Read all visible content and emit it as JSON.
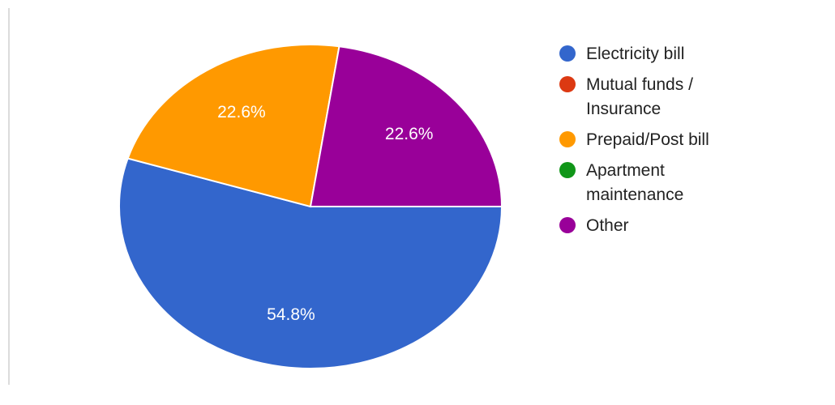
{
  "chart_data": {
    "type": "pie",
    "slices": [
      {
        "label": "Electricity bill",
        "value": 54.8,
        "value_label": "54.8%",
        "color": "#3366CC"
      },
      {
        "label": "Mutual funds / Insurance",
        "value": 0,
        "value_label": "",
        "color": "#DC3912"
      },
      {
        "label": "Prepaid/Post bill",
        "value": 22.6,
        "value_label": "22.6%",
        "color": "#FF9900"
      },
      {
        "label": "Apartment maintenance",
        "value": 0,
        "value_label": "",
        "color": "#109618"
      },
      {
        "label": "Other",
        "value": 22.6,
        "value_label": "22.6%",
        "color": "#990099"
      }
    ],
    "legend_position": "right",
    "start": "right"
  }
}
